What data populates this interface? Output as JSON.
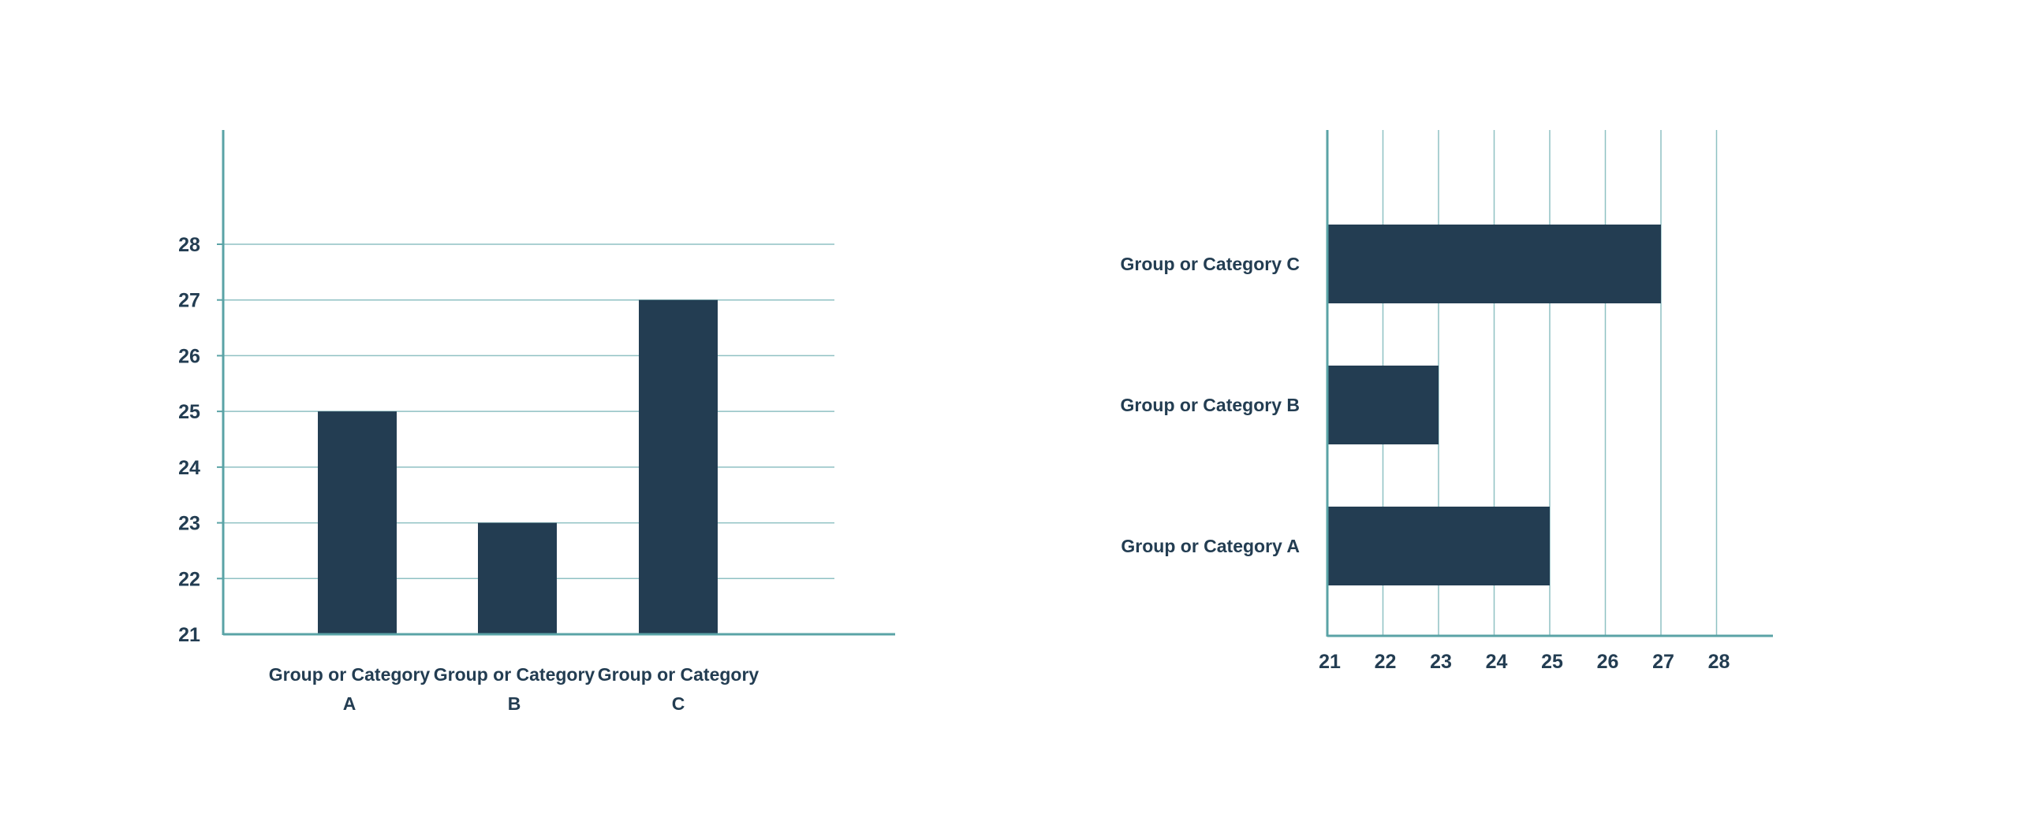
{
  "colors": {
    "bar": "#233d52",
    "axis": "#5aa3a6",
    "grid": "#8fc1c3",
    "text": "#233d52"
  },
  "chart_data": [
    {
      "type": "bar",
      "orientation": "vertical",
      "categories": [
        "Group or Category A",
        "Group or Category B",
        "Group or Category C"
      ],
      "category_label_lines": [
        [
          "Group or Category",
          "A"
        ],
        [
          "Group or Category",
          "B"
        ],
        [
          "Group or Category",
          "C"
        ]
      ],
      "values": [
        25,
        23,
        27
      ],
      "ylim": [
        21,
        28
      ],
      "yticks": [
        21,
        22,
        23,
        24,
        25,
        26,
        27,
        28
      ],
      "grid": "horizontal"
    },
    {
      "type": "bar",
      "orientation": "horizontal",
      "categories": [
        "Group or Category A",
        "Group or Category B",
        "Group or Category C"
      ],
      "values": [
        25,
        23,
        27
      ],
      "xlim": [
        21,
        28
      ],
      "xticks": [
        21,
        22,
        23,
        24,
        25,
        26,
        27,
        28
      ],
      "grid": "vertical"
    }
  ]
}
